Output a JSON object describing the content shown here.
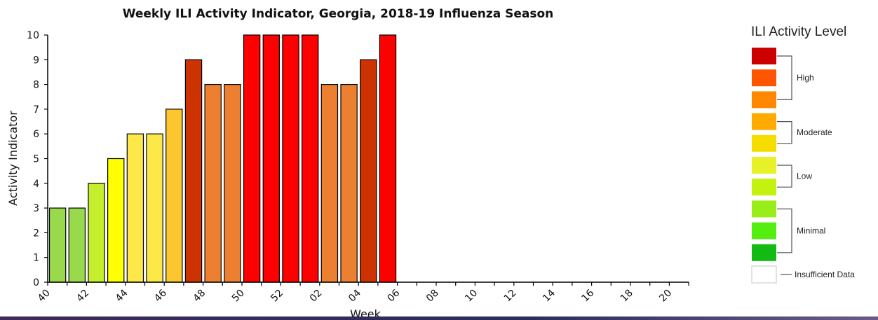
{
  "chart_data": {
    "type": "bar",
    "title": "Weekly ILI Activity Indicator, Georgia, 2018-19 Influenza Season",
    "xlabel": "Week",
    "ylabel": "Activity Indicator",
    "ylim": [
      0,
      10
    ],
    "yticks": [
      "0",
      "1",
      "2",
      "3",
      "4",
      "5",
      "6",
      "7",
      "8",
      "9",
      "10"
    ],
    "categories": [
      "40",
      "41",
      "42",
      "43",
      "44",
      "45",
      "46",
      "47",
      "48",
      "49",
      "50",
      "51",
      "52",
      "01",
      "02",
      "03",
      "04",
      "05",
      "06",
      "07",
      "08",
      "09",
      "10",
      "11",
      "12",
      "13",
      "14",
      "15",
      "16",
      "17",
      "18",
      "19",
      "20"
    ],
    "xtick_labels": [
      "40",
      "42",
      "44",
      "46",
      "48",
      "50",
      "52",
      "02",
      "04",
      "06",
      "08",
      "10",
      "12",
      "14",
      "16",
      "18",
      "20"
    ],
    "values": [
      3,
      3,
      4,
      5,
      6,
      6,
      7,
      9,
      8,
      8,
      10,
      10,
      10,
      10,
      8,
      8,
      9,
      10,
      null,
      null,
      null,
      null,
      null,
      null,
      null,
      null,
      null,
      null,
      null,
      null,
      null,
      null,
      null
    ],
    "level_colors": {
      "3": "#99d94c",
      "4": "#c5ef2c",
      "5": "#ffff00",
      "6": "#fde84a",
      "7": "#fbc62e",
      "8": "#ed8030",
      "9": "#cc3300",
      "10": "#ff0000"
    },
    "grid": false,
    "legend": {
      "title": "ILI Activity Level",
      "position": "right",
      "swatches": [
        "#cc0000",
        "#ff5500",
        "#ff8800",
        "#ffaa00",
        "#f5dd00",
        "#e6f227",
        "#c4f20f",
        "#99ee1a",
        "#55ee11",
        "#11bb11",
        "#ffffff"
      ],
      "groups": [
        "High",
        "Moderate",
        "Low",
        "Minimal"
      ],
      "insufficient_label": "Insufficient Data"
    }
  }
}
